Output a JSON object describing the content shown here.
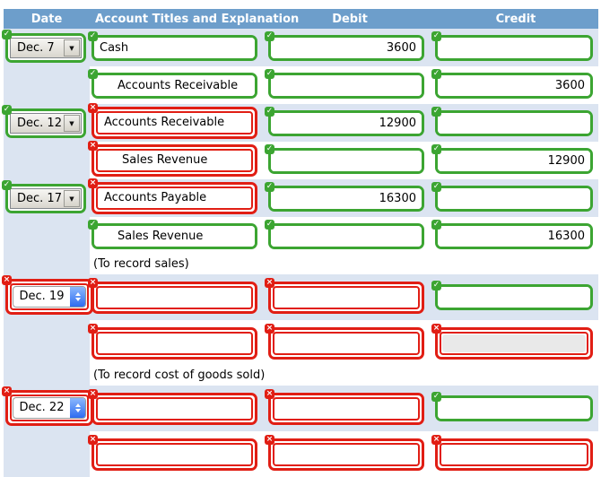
{
  "colors": {
    "valid_green": "#3CA532",
    "invalid_red": "#E11E14",
    "header_bg": "#6D9ECB",
    "row_band_blue": "#DBE4F1",
    "row_band_white": "#FFFFFF",
    "aqua_stepper_blue": "#2E6CF0"
  },
  "icons": {
    "check": "✓",
    "x": "×",
    "dropdown_arrow": "▼"
  },
  "header": {
    "columns": [
      "Date",
      "Account Titles and Explanation",
      "Debit",
      "Credit"
    ]
  },
  "entries": [
    {
      "date": {
        "label": "Dec. 7",
        "control": "classic",
        "status": "valid"
      },
      "lines": [
        {
          "account": {
            "value": "Cash",
            "indent": false,
            "status": "valid"
          },
          "debit": {
            "value": "3600",
            "status": "valid"
          },
          "credit": {
            "value": "",
            "status": "valid"
          }
        },
        {
          "account": {
            "value": "Accounts Receivable",
            "indent": true,
            "status": "valid"
          },
          "debit": {
            "value": "",
            "status": "valid"
          },
          "credit": {
            "value": "3600",
            "status": "valid"
          }
        }
      ],
      "explanation": ""
    },
    {
      "date": {
        "label": "Dec. 12",
        "control": "classic",
        "status": "valid"
      },
      "lines": [
        {
          "account": {
            "value": "Accounts Receivable",
            "indent": false,
            "status": "invalid"
          },
          "debit": {
            "value": "12900",
            "status": "valid"
          },
          "credit": {
            "value": "",
            "status": "valid"
          }
        },
        {
          "account": {
            "value": "Sales Revenue",
            "indent": true,
            "status": "invalid"
          },
          "debit": {
            "value": "",
            "status": "valid"
          },
          "credit": {
            "value": "12900",
            "status": "valid"
          }
        }
      ],
      "explanation": ""
    },
    {
      "date": {
        "label": "Dec. 17",
        "control": "classic",
        "status": "valid"
      },
      "lines": [
        {
          "account": {
            "value": "Accounts Payable",
            "indent": false,
            "status": "invalid"
          },
          "debit": {
            "value": "16300",
            "status": "valid"
          },
          "credit": {
            "value": "",
            "status": "valid"
          }
        },
        {
          "account": {
            "value": "Sales Revenue",
            "indent": true,
            "status": "valid"
          },
          "debit": {
            "value": "",
            "status": "valid"
          },
          "credit": {
            "value": "16300",
            "status": "valid"
          }
        }
      ],
      "explanation": "(To record sales)"
    },
    {
      "date": {
        "label": "Dec. 19",
        "control": "aqua",
        "status": "invalid"
      },
      "lines": [
        {
          "account": {
            "value": "",
            "indent": false,
            "status": "invalid"
          },
          "debit": {
            "value": "",
            "status": "invalid"
          },
          "credit": {
            "value": "",
            "status": "valid"
          }
        },
        {
          "account": {
            "value": "",
            "indent": false,
            "status": "invalid"
          },
          "debit": {
            "value": "",
            "status": "invalid"
          },
          "credit": {
            "value": "",
            "status": "invalid",
            "dim": true
          }
        }
      ],
      "explanation": "(To record cost of goods sold)"
    },
    {
      "date": {
        "label": "Dec. 22",
        "control": "aqua",
        "status": "invalid"
      },
      "lines": [
        {
          "account": {
            "value": "",
            "indent": false,
            "status": "invalid"
          },
          "debit": {
            "value": "",
            "status": "invalid"
          },
          "credit": {
            "value": "",
            "status": "valid"
          }
        },
        {
          "account": {
            "value": "",
            "indent": false,
            "status": "invalid"
          },
          "debit": {
            "value": "",
            "status": "invalid"
          },
          "credit": {
            "value": "",
            "status": "invalid"
          }
        }
      ],
      "explanation": ""
    }
  ]
}
